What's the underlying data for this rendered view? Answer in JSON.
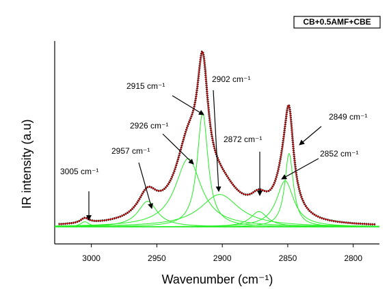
{
  "chart_data": {
    "type": "peak-fit",
    "title": "CB+0.5AMF+CBE",
    "x_label": "Wavenumber (cm⁻¹)",
    "y_label": "IR intensity (a.u)",
    "xlim": [
      3028,
      2780
    ],
    "ylim": [
      -10,
      109
    ],
    "xticks": [
      3000,
      2950,
      2900,
      2850,
      2800
    ],
    "data_color": "#000000",
    "fit_color": "#cc0000",
    "component_color": "#22ee22",
    "peaks": [
      {
        "label": "3005 cm⁻¹",
        "center": 3005,
        "height": 3,
        "hwhm": 4
      },
      {
        "label": "2957 cm⁻¹",
        "center": 2957,
        "height": 15,
        "hwhm": 9
      },
      {
        "label": "2926 cm⁻¹",
        "center": 2926,
        "height": 40,
        "hwhm": 12
      },
      {
        "label": "2915 cm⁻¹",
        "center": 2915,
        "height": 67,
        "hwhm": 5
      },
      {
        "label": "2902 cm⁻¹",
        "center": 2902,
        "height": 19,
        "hwhm": 18
      },
      {
        "label": "2872 cm⁻¹",
        "center": 2872,
        "height": 9,
        "hwhm": 8
      },
      {
        "label": "2852 cm⁻¹",
        "center": 2852,
        "height": 27,
        "hwhm": 8
      },
      {
        "label": "2849 cm⁻¹",
        "center": 2849,
        "height": 43,
        "hwhm": 4
      }
    ]
  }
}
